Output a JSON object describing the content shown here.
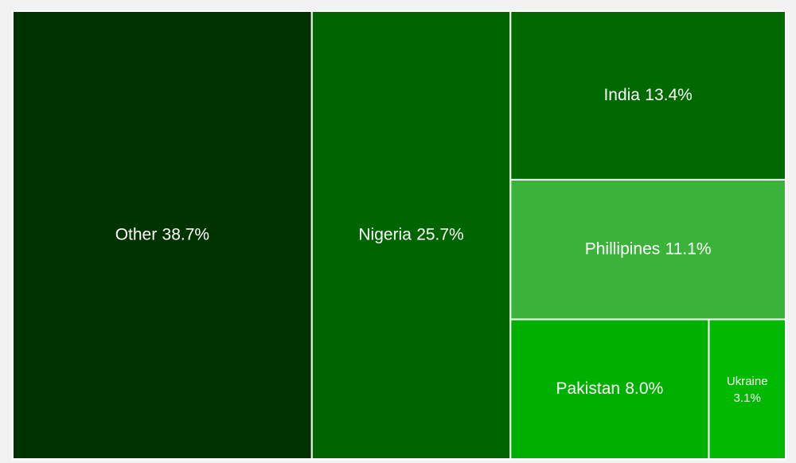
{
  "chart_data": {
    "type": "treemap",
    "categories": [
      "Other",
      "Nigeria",
      "India",
      "Phillipines",
      "Pakistan",
      "Ukraine"
    ],
    "values": [
      38.7,
      25.7,
      13.4,
      11.1,
      8.0,
      3.1
    ],
    "value_labels": [
      "38.7%",
      "25.7%",
      "13.4%",
      "11.1%",
      "8.0%",
      "3.1%"
    ],
    "colors": [
      "#003300",
      "#006400",
      "#006a00",
      "#3bb33b",
      "#00b000",
      "#00b900"
    ]
  }
}
